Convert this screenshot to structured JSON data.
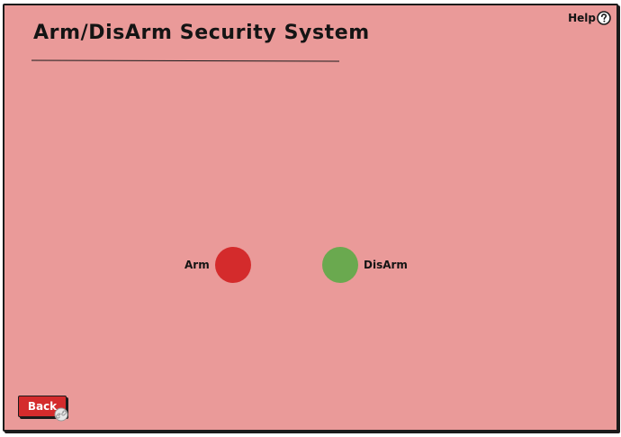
{
  "header": {
    "title": "Arm/DisArm Security System",
    "help_label": "Help",
    "help_icon": "question-circle-icon"
  },
  "controls": {
    "arm": {
      "label": "Arm",
      "color": "#d42b2c"
    },
    "disarm": {
      "label": "DisArm",
      "color": "#6aa94f"
    }
  },
  "footer": {
    "back_label": "Back",
    "back_color": "#d42b2c",
    "link_icon": "link-icon"
  },
  "theme": {
    "background": "#ea9a99",
    "outline": "#1b1b1b"
  }
}
